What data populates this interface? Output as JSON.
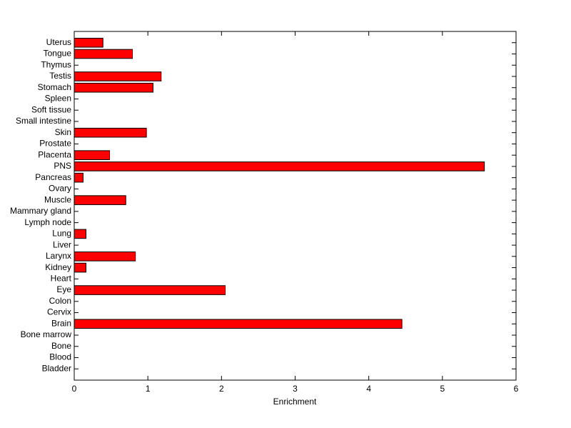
{
  "chart_data": {
    "type": "barh",
    "x_label": "Enrichment",
    "categories": [
      "Bladder",
      "Blood",
      "Bone",
      "Bone marrow",
      "Brain",
      "Cervix",
      "Colon",
      "Eye",
      "Heart",
      "Kidney",
      "Larynx",
      "Liver",
      "Lung",
      "Lymph node",
      "Mammary gland",
      "Muscle",
      "Ovary",
      "Pancreas",
      "PNS",
      "Placenta",
      "Prostate",
      "Skin",
      "Small intestine",
      "Soft tissue",
      "Spleen",
      "Stomach",
      "Testis",
      "Thymus",
      "Tongue",
      "Uterus"
    ],
    "values": [
      0,
      0,
      0,
      0,
      4.45,
      0,
      0,
      2.05,
      0,
      0.16,
      0.83,
      0,
      0.16,
      0,
      0,
      0.7,
      0,
      0.12,
      5.57,
      0.48,
      0,
      0.98,
      0,
      0,
      0,
      1.07,
      1.18,
      0,
      0.79,
      0.39
    ],
    "color": "#ff0000",
    "xlim": [
      0,
      6
    ],
    "xticks": [
      0,
      1,
      2,
      3,
      4,
      5,
      6
    ]
  }
}
